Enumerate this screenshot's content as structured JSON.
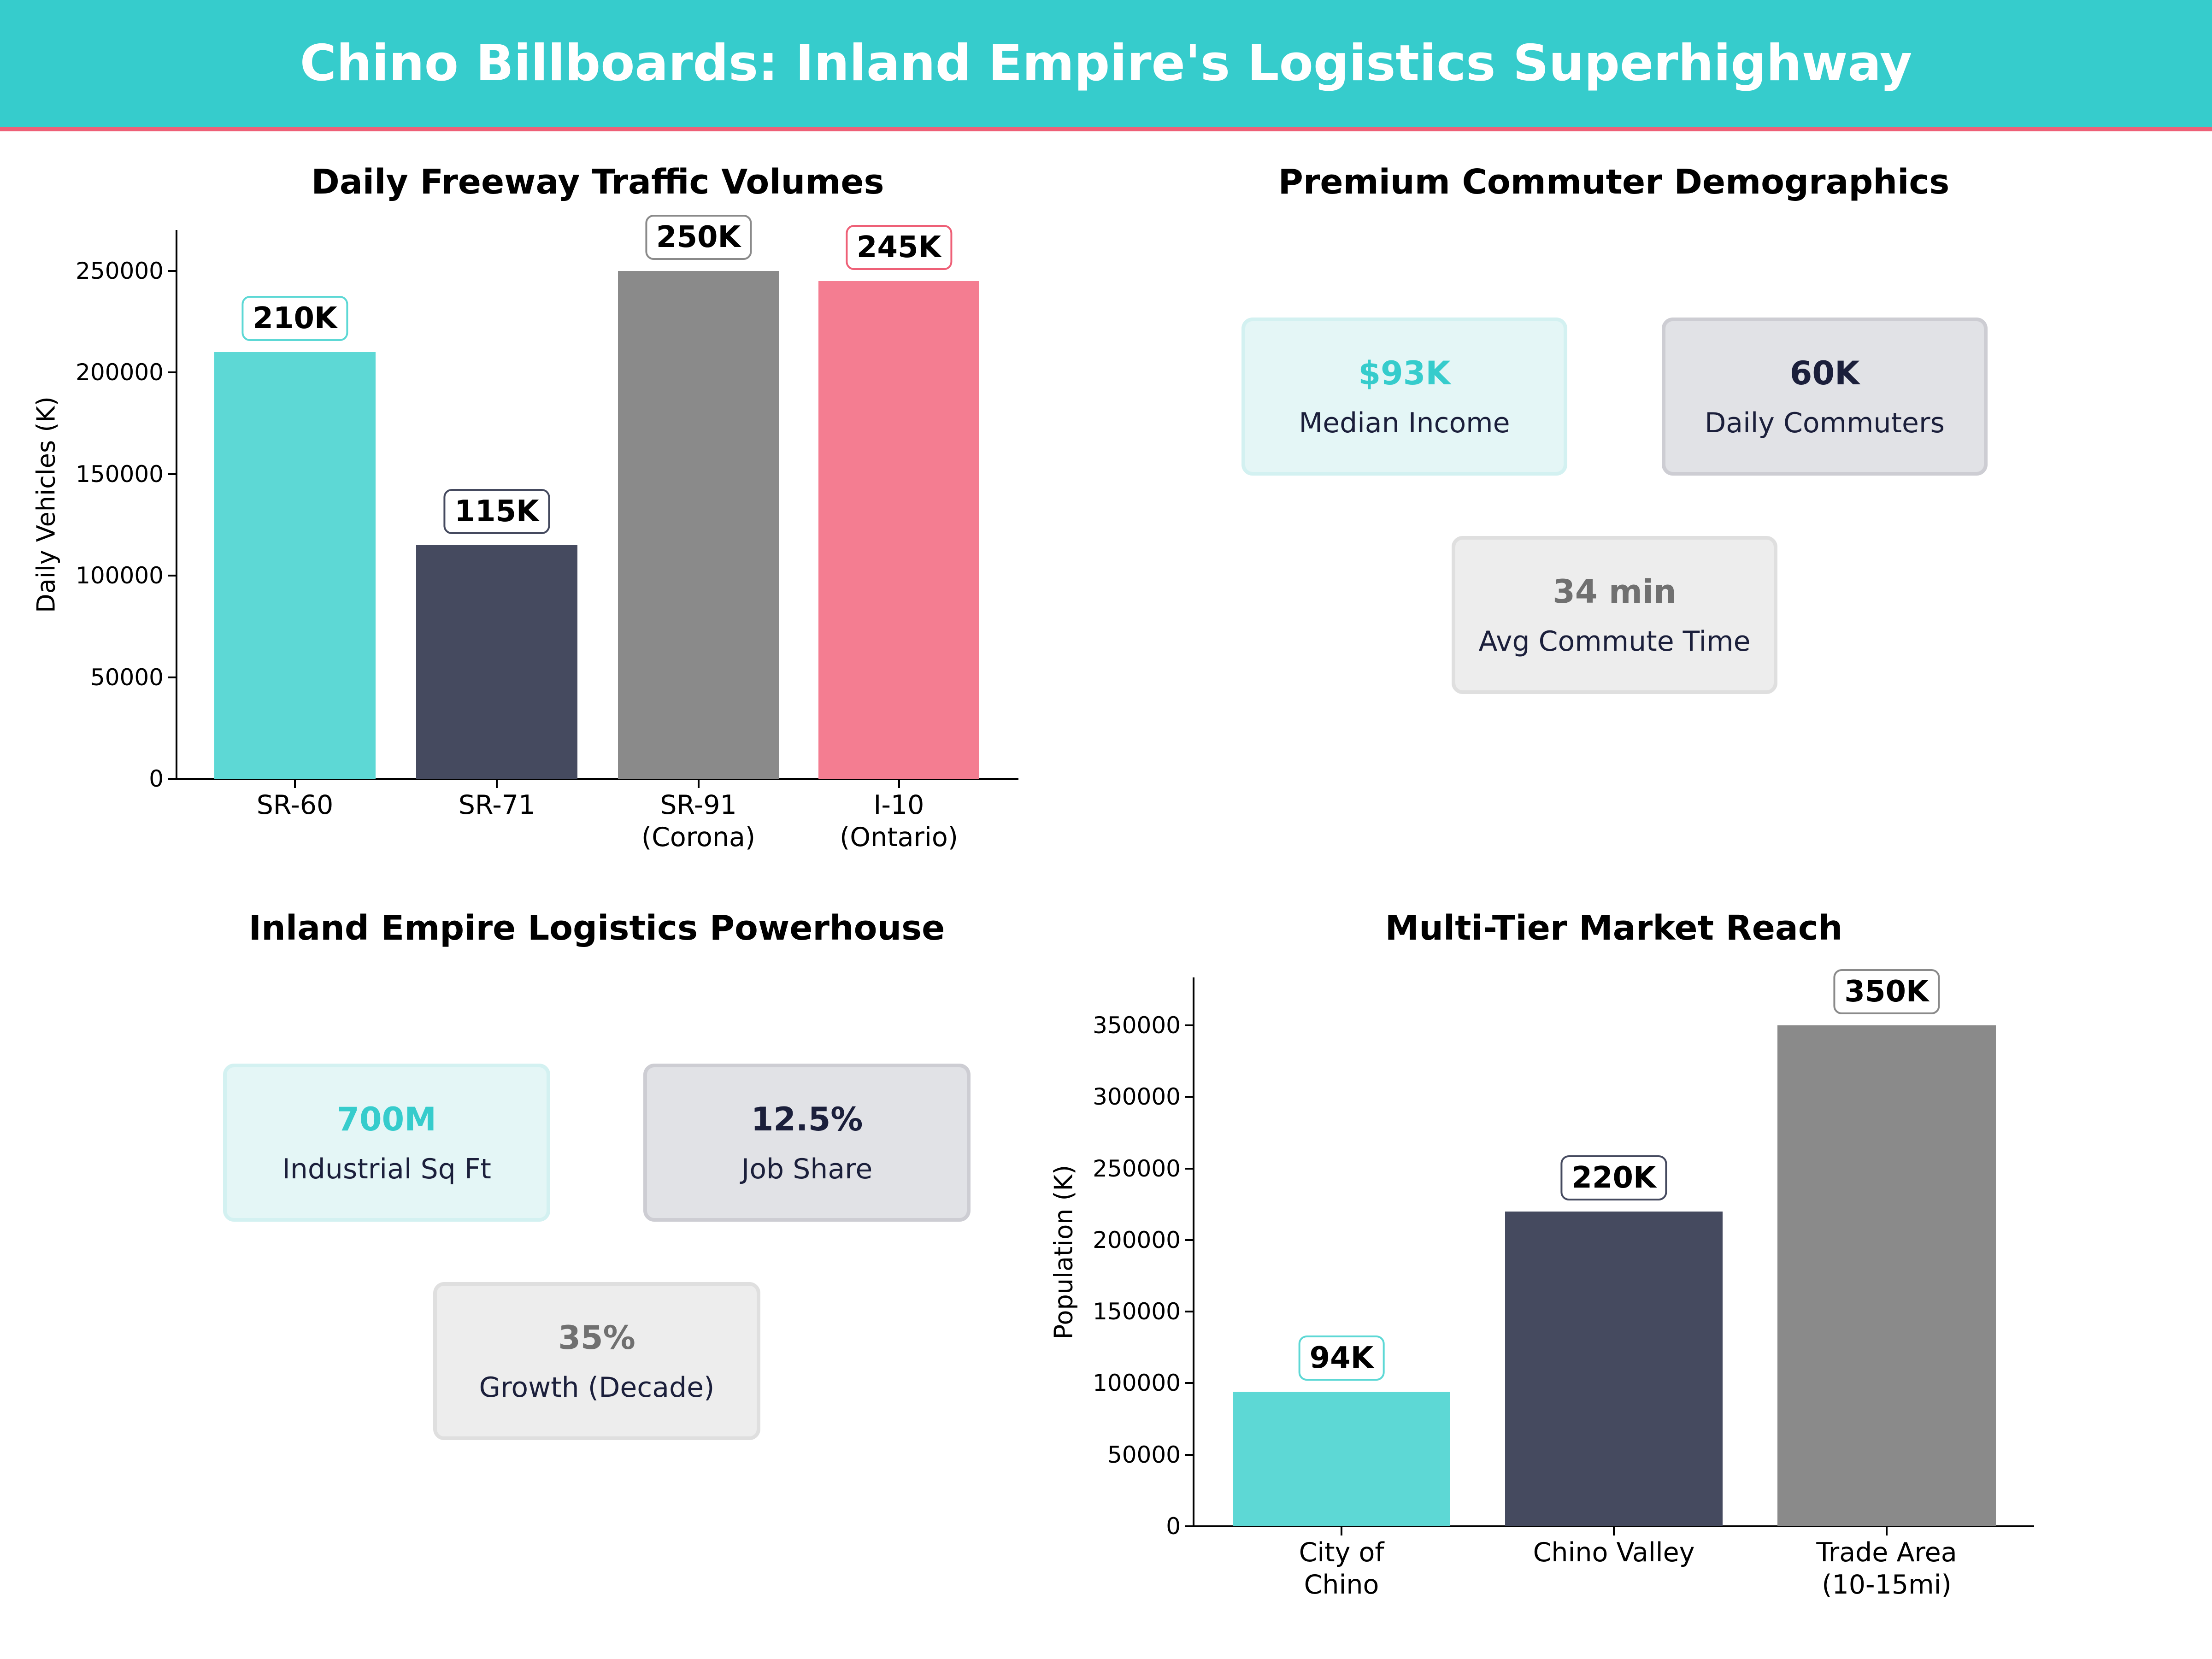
{
  "header": {
    "title": "Chino Billboards: Inland Empire's Logistics Superhighway",
    "bg_color": "#36CCCC",
    "accent_line_color": "#EE6077"
  },
  "panels": {
    "traffic": {
      "title": "Daily Freeway Traffic Volumes",
      "ylabel": "Daily Vehicles (K)",
      "yticks": [
        "0",
        "50000",
        "100000",
        "150000",
        "200000",
        "250000"
      ],
      "bars": [
        {
          "label": "SR-60",
          "value": 210000,
          "value_label": "210K",
          "color": "#5DD8D5",
          "border": "#5DD8D5"
        },
        {
          "label": "SR-71",
          "value": 115000,
          "value_label": "115K",
          "color": "#454A5F",
          "border": "#454A5F"
        },
        {
          "label": "SR-91\n(Corona)",
          "value": 250000,
          "value_label": "250K",
          "color": "#8A8A8A",
          "border": "#8A8A8A"
        },
        {
          "label": "I-10\n(Ontario)",
          "value": 245000,
          "value_label": "245K",
          "color": "#F47D91",
          "border": "#EE6077"
        }
      ]
    },
    "demographics": {
      "title": "Premium Commuter Demographics",
      "cards": [
        {
          "value": "$93K",
          "label": "Median Income",
          "value_color": "#36CCCC",
          "bg": "#E4F6F6",
          "border": "#D3F1F1"
        },
        {
          "value": "60K",
          "label": "Daily Commuters",
          "value_color": "#1B1F3B",
          "bg": "#E1E2E6",
          "border": "#CDCDD3"
        },
        {
          "value": "34 min",
          "label": "Avg Commute Time",
          "value_color": "#707070",
          "bg": "#EDEDED",
          "border": "#DFDFDF"
        }
      ]
    },
    "logistics": {
      "title": "Inland Empire Logistics Powerhouse",
      "cards": [
        {
          "value": "700M",
          "label": "Industrial Sq Ft",
          "value_color": "#36CCCC",
          "bg": "#E4F6F6",
          "border": "#D3F1F1"
        },
        {
          "value": "12.5%",
          "label": "Job Share",
          "value_color": "#1B1F3B",
          "bg": "#E1E2E6",
          "border": "#CDCDD3"
        },
        {
          "value": "35%",
          "label": "Growth (Decade)",
          "value_color": "#707070",
          "bg": "#EDEDED",
          "border": "#DFDFDF"
        }
      ]
    },
    "market": {
      "title": "Multi-Tier Market Reach",
      "ylabel": "Population (K)",
      "yticks": [
        "0",
        "50000",
        "100000",
        "150000",
        "200000",
        "250000",
        "300000",
        "350000"
      ],
      "bars": [
        {
          "label": "City of\nChino",
          "value": 94000,
          "value_label": "94K",
          "color": "#5DD8D5",
          "border": "#5DD8D5"
        },
        {
          "label": "Chino Valley",
          "value": 220000,
          "value_label": "220K",
          "color": "#454A5F",
          "border": "#454A5F"
        },
        {
          "label": "Trade Area\n(10-15mi)",
          "value": 350000,
          "value_label": "350K",
          "color": "#8A8A8A",
          "border": "#8A8A8A"
        }
      ]
    }
  },
  "chart_data": [
    {
      "type": "bar",
      "title": "Daily Freeway Traffic Volumes",
      "xlabel": "",
      "ylabel": "Daily Vehicles (K)",
      "categories": [
        "SR-60",
        "SR-71",
        "SR-91 (Corona)",
        "I-10 (Ontario)"
      ],
      "values": [
        210000,
        115000,
        250000,
        245000
      ],
      "data_labels": [
        "210K",
        "115K",
        "250K",
        "245K"
      ],
      "ylim": [
        0,
        270000
      ],
      "yticks": [
        0,
        50000,
        100000,
        150000,
        200000,
        250000
      ],
      "grid": false,
      "legend": "none"
    },
    {
      "type": "table",
      "title": "Premium Commuter Demographics",
      "rows": [
        {
          "metric": "Median Income",
          "value": "$93K"
        },
        {
          "metric": "Daily Commuters",
          "value": "60K"
        },
        {
          "metric": "Avg Commute Time",
          "value": "34 min"
        }
      ]
    },
    {
      "type": "table",
      "title": "Inland Empire Logistics Powerhouse",
      "rows": [
        {
          "metric": "Industrial Sq Ft",
          "value": "700M"
        },
        {
          "metric": "Job Share",
          "value": "12.5%"
        },
        {
          "metric": "Growth (Decade)",
          "value": "35%"
        }
      ]
    },
    {
      "type": "bar",
      "title": "Multi-Tier Market Reach",
      "xlabel": "",
      "ylabel": "Population (K)",
      "categories": [
        "City of Chino",
        "Chino Valley",
        "Trade Area (10-15mi)"
      ],
      "values": [
        94000,
        220000,
        350000
      ],
      "data_labels": [
        "94K",
        "220K",
        "350K"
      ],
      "ylim": [
        0,
        383000
      ],
      "yticks": [
        0,
        50000,
        100000,
        150000,
        200000,
        250000,
        300000,
        350000
      ],
      "grid": false,
      "legend": "none"
    }
  ]
}
